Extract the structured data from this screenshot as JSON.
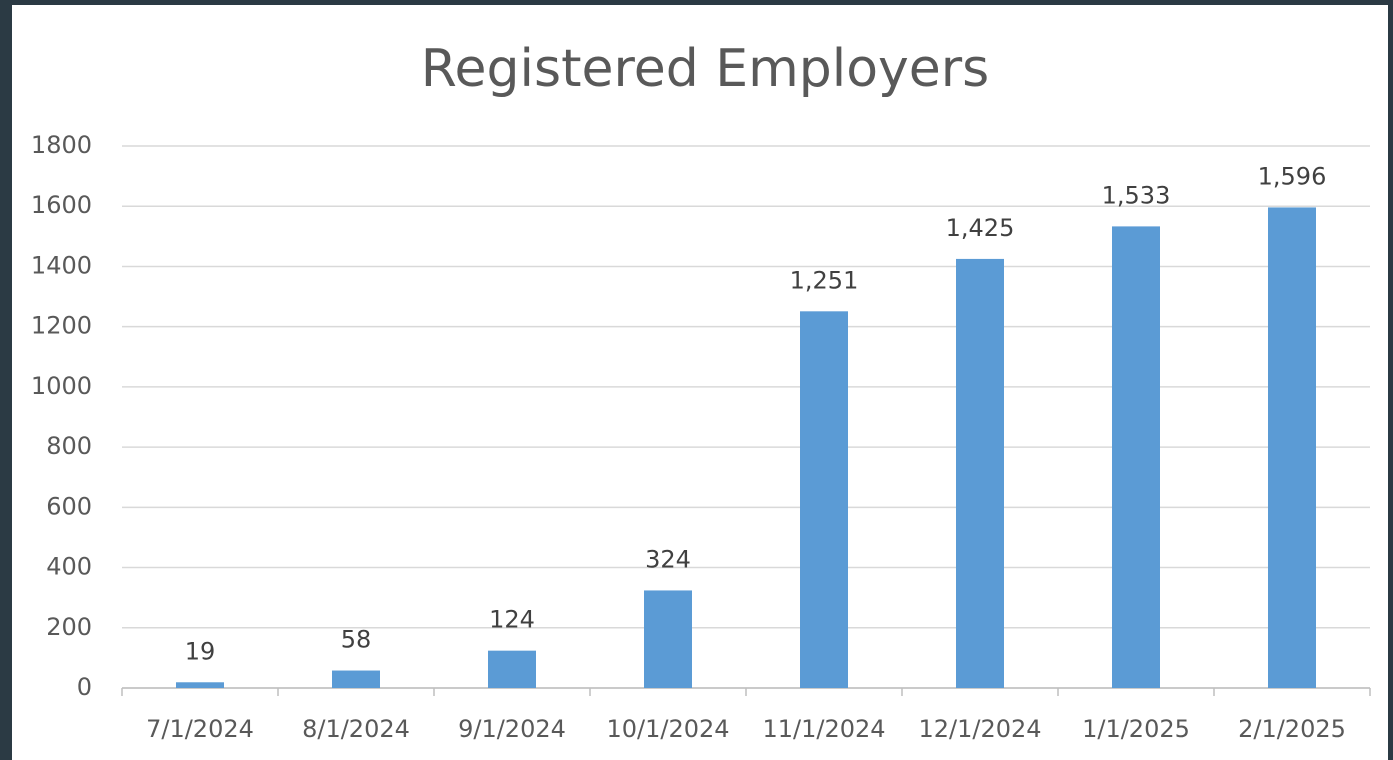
{
  "chart_data": {
    "type": "bar",
    "title": "Registered Employers",
    "categories": [
      "7/1/2024",
      "8/1/2024",
      "9/1/2024",
      "10/1/2024",
      "11/1/2024",
      "12/1/2024",
      "1/1/2025",
      "2/1/2025"
    ],
    "values": [
      19,
      58,
      124,
      324,
      1251,
      1425,
      1533,
      1596
    ],
    "value_labels": [
      "19",
      "58",
      "124",
      "324",
      "1,251",
      "1,425",
      "1,533",
      "1,596"
    ],
    "color": "#5b9bd5",
    "ylim": [
      0,
      1800
    ],
    "yticks": [
      0,
      200,
      400,
      600,
      800,
      1000,
      1200,
      1400,
      1600,
      1800
    ],
    "grid": true
  }
}
